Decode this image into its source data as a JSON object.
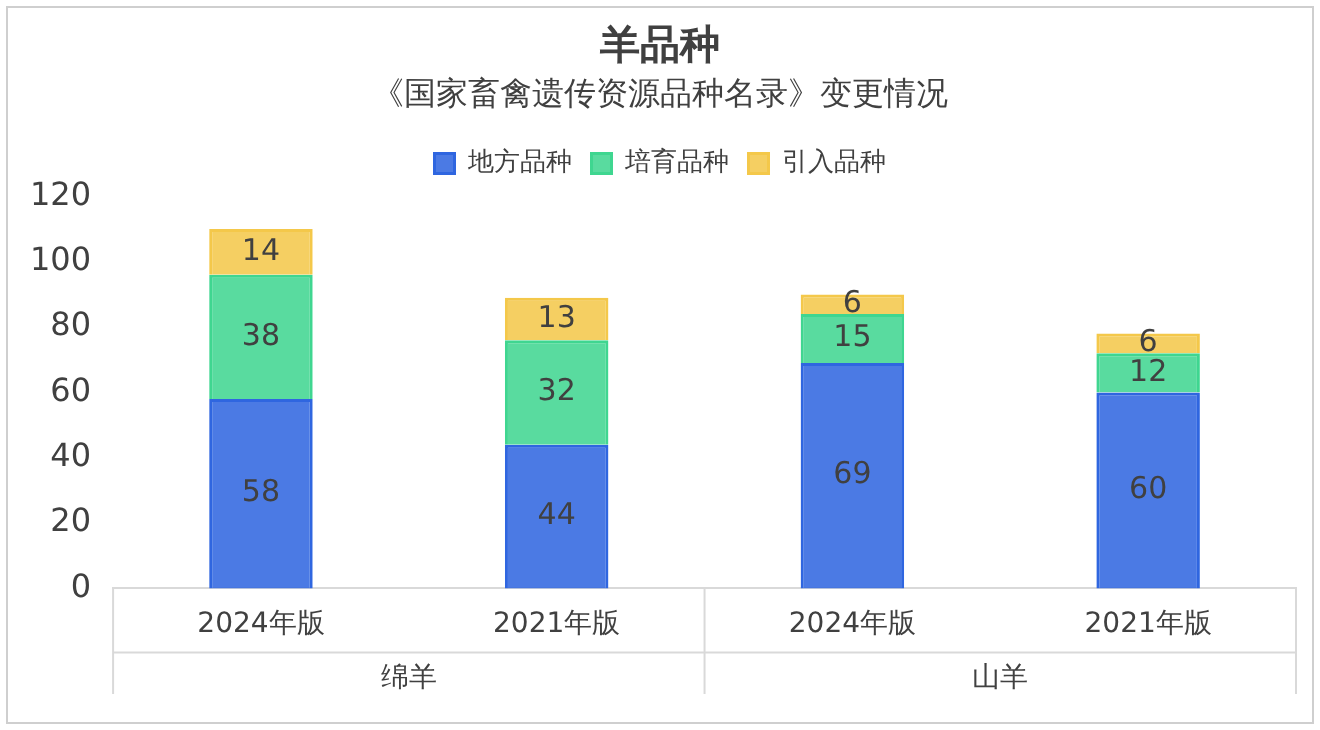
{
  "chart_data": {
    "type": "bar",
    "title": "羊品种",
    "subtitle": "《国家畜禽遗传资源品种名录》变更情况",
    "categories": [
      "2024年版",
      "2021年版",
      "2024年版",
      "2021年版"
    ],
    "stacked": true,
    "data_labels": true,
    "legend": "top",
    "grid": false,
    "ylim": [
      0,
      120
    ],
    "yticks": [
      0,
      20,
      40,
      60,
      80,
      100,
      120
    ],
    "series": [
      {
        "name": "地方品种",
        "color": "#2f66e0",
        "values": [
          58,
          44,
          69,
          60
        ]
      },
      {
        "name": "培育品种",
        "color": "#3fd690",
        "values": [
          38,
          32,
          15,
          12
        ]
      },
      {
        "name": "引入品种",
        "color": "#f4c84a",
        "values": [
          14,
          13,
          6,
          6
        ]
      }
    ],
    "annotations": [
      "绵羊",
      "山羊"
    ]
  }
}
